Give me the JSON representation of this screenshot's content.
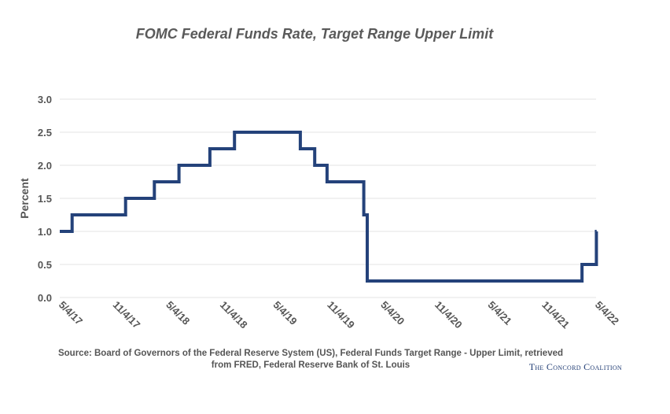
{
  "chart_data": {
    "type": "line",
    "title": "FOMC Federal Funds Rate, Target Range Upper Limit",
    "ylabel": "Percent",
    "xlabel": "",
    "ylim": [
      0,
      3.0
    ],
    "xlim": [
      "2017-05-04",
      "2022-05-04"
    ],
    "yticks": [
      "0.0",
      "0.5",
      "1.0",
      "1.5",
      "2.0",
      "2.5",
      "3.0"
    ],
    "xticks": [
      {
        "date": "2017-05-04",
        "label": "5/4/17"
      },
      {
        "date": "2017-11-04",
        "label": "11/4/17"
      },
      {
        "date": "2018-05-04",
        "label": "5/4/18"
      },
      {
        "date": "2018-11-04",
        "label": "11/4/18"
      },
      {
        "date": "2019-05-04",
        "label": "5/4/19"
      },
      {
        "date": "2019-11-04",
        "label": "11/4/19"
      },
      {
        "date": "2020-05-04",
        "label": "5/4/20"
      },
      {
        "date": "2020-11-04",
        "label": "11/4/20"
      },
      {
        "date": "2021-05-04",
        "label": "5/4/21"
      },
      {
        "date": "2021-11-04",
        "label": "11/4/21"
      },
      {
        "date": "2022-05-04",
        "label": "5/4/22"
      }
    ],
    "grid": true,
    "legend": "none",
    "line_color": "#24427a",
    "series": [
      {
        "name": "",
        "points": [
          [
            "2017-05-04",
            1.0
          ],
          [
            "2017-06-15",
            1.25
          ],
          [
            "2017-12-14",
            1.5
          ],
          [
            "2018-03-22",
            1.75
          ],
          [
            "2018-06-14",
            2.0
          ],
          [
            "2018-09-27",
            2.25
          ],
          [
            "2018-12-20",
            2.5
          ],
          [
            "2019-08-01",
            2.25
          ],
          [
            "2019-09-19",
            2.0
          ],
          [
            "2019-10-31",
            1.75
          ],
          [
            "2020-03-04",
            1.25
          ],
          [
            "2020-03-16",
            0.25
          ],
          [
            "2022-03-17",
            0.5
          ],
          [
            "2022-05-05",
            1.0
          ]
        ],
        "end": "2022-05-06"
      }
    ]
  },
  "source": {
    "line1": "Source: Board of Governors of the Federal Reserve System (US), Federal Funds Target Range - Upper Limit, retrieved",
    "line2": "from FRED, Federal Reserve Bank of St. Louis"
  },
  "brand": "The Concord Coalition"
}
